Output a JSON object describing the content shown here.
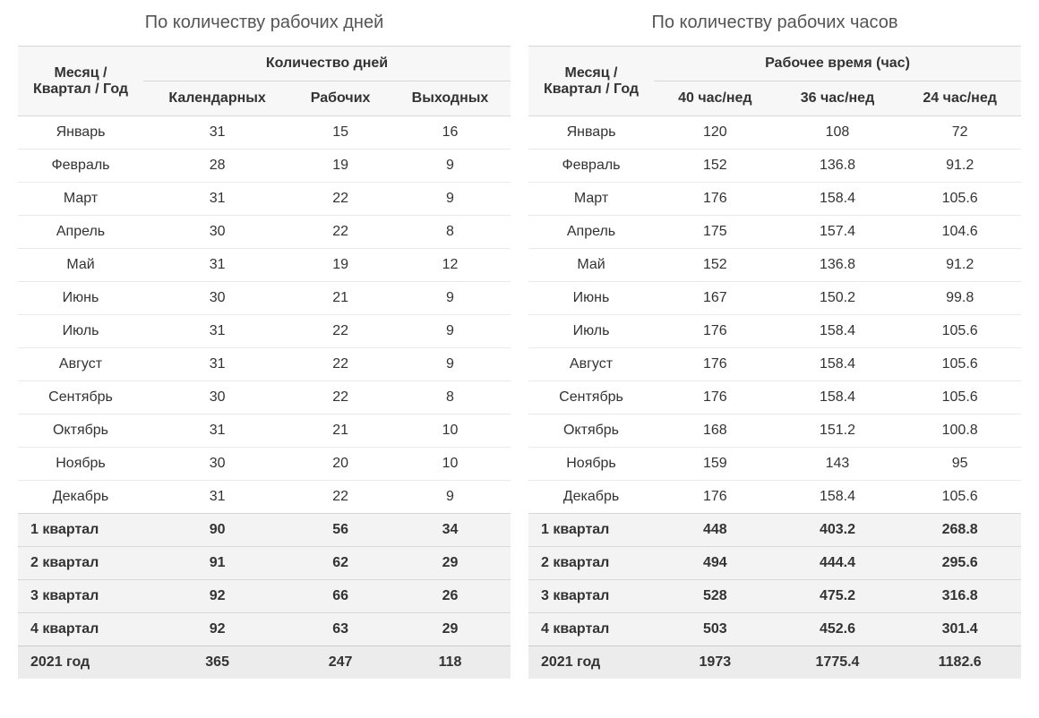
{
  "days_table": {
    "title": "По количеству рабочих дней",
    "row_header": "Месяц / Квартал / Год",
    "group_header": "Количество дней",
    "columns": [
      "Календарных",
      "Рабочих",
      "Выходных"
    ],
    "rows": [
      {
        "label": "Январь",
        "cells": [
          "31",
          "15",
          "16"
        ],
        "type": "month"
      },
      {
        "label": "Февраль",
        "cells": [
          "28",
          "19",
          "9"
        ],
        "type": "month"
      },
      {
        "label": "Март",
        "cells": [
          "31",
          "22",
          "9"
        ],
        "type": "month"
      },
      {
        "label": "Апрель",
        "cells": [
          "30",
          "22",
          "8"
        ],
        "type": "month"
      },
      {
        "label": "Май",
        "cells": [
          "31",
          "19",
          "12"
        ],
        "type": "month"
      },
      {
        "label": "Июнь",
        "cells": [
          "30",
          "21",
          "9"
        ],
        "type": "month"
      },
      {
        "label": "Июль",
        "cells": [
          "31",
          "22",
          "9"
        ],
        "type": "month"
      },
      {
        "label": "Август",
        "cells": [
          "31",
          "22",
          "9"
        ],
        "type": "month"
      },
      {
        "label": "Сентябрь",
        "cells": [
          "30",
          "22",
          "8"
        ],
        "type": "month"
      },
      {
        "label": "Октябрь",
        "cells": [
          "31",
          "21",
          "10"
        ],
        "type": "month"
      },
      {
        "label": "Ноябрь",
        "cells": [
          "30",
          "20",
          "10"
        ],
        "type": "month"
      },
      {
        "label": "Декабрь",
        "cells": [
          "31",
          "22",
          "9"
        ],
        "type": "month"
      },
      {
        "label": "1 квартал",
        "cells": [
          "90",
          "56",
          "34"
        ],
        "type": "sum"
      },
      {
        "label": "2 квартал",
        "cells": [
          "91",
          "62",
          "29"
        ],
        "type": "sum"
      },
      {
        "label": "3 квартал",
        "cells": [
          "92",
          "66",
          "26"
        ],
        "type": "sum"
      },
      {
        "label": "4 квартал",
        "cells": [
          "92",
          "63",
          "29"
        ],
        "type": "sum"
      },
      {
        "label": "2021 год",
        "cells": [
          "365",
          "247",
          "118"
        ],
        "type": "total"
      }
    ]
  },
  "hours_table": {
    "title": "По количеству рабочих часов",
    "row_header": "Месяц / Квартал / Год",
    "group_header": "Рабочее время (час)",
    "columns": [
      "40 час/нед",
      "36 час/нед",
      "24 час/нед"
    ],
    "rows": [
      {
        "label": "Январь",
        "cells": [
          "120",
          "108",
          "72"
        ],
        "type": "month"
      },
      {
        "label": "Февраль",
        "cells": [
          "152",
          "136.8",
          "91.2"
        ],
        "type": "month"
      },
      {
        "label": "Март",
        "cells": [
          "176",
          "158.4",
          "105.6"
        ],
        "type": "month"
      },
      {
        "label": "Апрель",
        "cells": [
          "175",
          "157.4",
          "104.6"
        ],
        "type": "month"
      },
      {
        "label": "Май",
        "cells": [
          "152",
          "136.8",
          "91.2"
        ],
        "type": "month"
      },
      {
        "label": "Июнь",
        "cells": [
          "167",
          "150.2",
          "99.8"
        ],
        "type": "month"
      },
      {
        "label": "Июль",
        "cells": [
          "176",
          "158.4",
          "105.6"
        ],
        "type": "month"
      },
      {
        "label": "Август",
        "cells": [
          "176",
          "158.4",
          "105.6"
        ],
        "type": "month"
      },
      {
        "label": "Сентябрь",
        "cells": [
          "176",
          "158.4",
          "105.6"
        ],
        "type": "month"
      },
      {
        "label": "Октябрь",
        "cells": [
          "168",
          "151.2",
          "100.8"
        ],
        "type": "month"
      },
      {
        "label": "Ноябрь",
        "cells": [
          "159",
          "143",
          "95"
        ],
        "type": "month"
      },
      {
        "label": "Декабрь",
        "cells": [
          "176",
          "158.4",
          "105.6"
        ],
        "type": "month"
      },
      {
        "label": "1 квартал",
        "cells": [
          "448",
          "403.2",
          "268.8"
        ],
        "type": "sum"
      },
      {
        "label": "2 квартал",
        "cells": [
          "494",
          "444.4",
          "295.6"
        ],
        "type": "sum"
      },
      {
        "label": "3 квартал",
        "cells": [
          "528",
          "475.2",
          "316.8"
        ],
        "type": "sum"
      },
      {
        "label": "4 квартал",
        "cells": [
          "503",
          "452.6",
          "301.4"
        ],
        "type": "sum"
      },
      {
        "label": "2021 год",
        "cells": [
          "1973",
          "1775.4",
          "1182.6"
        ],
        "type": "total"
      }
    ]
  }
}
